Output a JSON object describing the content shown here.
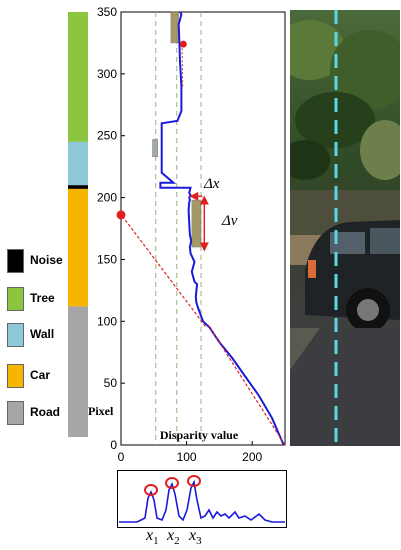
{
  "legend": [
    {
      "label": "Noise",
      "color": "#000000"
    },
    {
      "label": "Tree",
      "color": "#8cc63f"
    },
    {
      "label": "Wall",
      "color": "#8ec9d9"
    },
    {
      "label": "Car",
      "color": "#f7b500"
    },
    {
      "label": "Road",
      "color": "#a6a6a6"
    }
  ],
  "segment_bar": [
    {
      "class": "Tree",
      "from": 245,
      "to": 350,
      "color": "#8cc63f"
    },
    {
      "class": "Wall",
      "from": 210,
      "to": 245,
      "color": "#8ec9d9"
    },
    {
      "class": "Noise",
      "from": 207,
      "to": 210,
      "color": "#000000"
    },
    {
      "class": "Car",
      "from": 112,
      "to": 207,
      "color": "#f7b500"
    },
    {
      "class": "Road",
      "from": 0,
      "to": 112,
      "color": "#a6a6a6"
    }
  ],
  "annotations": {
    "pixel": "Pixel",
    "xlabel": "Disparity value",
    "delta_x": "Δx",
    "delta_v": "Δv",
    "peaks": [
      "x",
      "x",
      "x"
    ],
    "peak_subs": [
      "1",
      "2",
      "3"
    ]
  },
  "colors": {
    "curve": "#1a1adc",
    "fit": "#e02020",
    "peak_circle": "#e02020",
    "guide": "#9ab07a",
    "dash_photo": "#5ad7e6"
  },
  "chart_data": {
    "type": "line",
    "xlim": [
      0,
      250
    ],
    "ylim": [
      0,
      350
    ],
    "xticks": [
      0,
      100,
      200
    ],
    "yticks": [
      0,
      50,
      100,
      150,
      200,
      250,
      300,
      350
    ],
    "series": [
      {
        "x": [
          248,
          230,
          210,
          190,
          170,
          150,
          135,
          125,
          118,
          115,
          114,
          116,
          112,
          108,
          112,
          106,
          105,
          107,
          105,
          104,
          103,
          104,
          105,
          104,
          106,
          104,
          105,
          106,
          60,
          60,
          80,
          62,
          62,
          86,
          92,
          92,
          90,
          89,
          88,
          92,
          90
        ],
        "y": [
          0,
          22,
          40,
          55,
          70,
          83,
          95,
          100,
          110,
          115,
          120,
          130,
          132,
          140,
          148,
          155,
          160,
          165,
          170,
          180,
          190,
          196,
          198,
          200,
          202,
          204,
          206,
          208,
          208,
          212,
          212,
          220,
          260,
          262,
          270,
          290,
          310,
          325,
          340,
          348,
          350
        ]
      },
      {
        "x": [
          250,
          133
        ],
        "y": [
          0,
          97
        ]
      },
      {
        "x": [
          2,
          130
        ],
        "y": [
          185,
          95
        ]
      },
      {
        "x": [
          94,
          93
        ],
        "y": [
          290,
          325
        ]
      }
    ],
    "guides_x": [
      53,
      85,
      122
    ],
    "boxes": [
      {
        "x0": 76,
        "x1": 88,
        "y0": 325,
        "y1": 350
      },
      {
        "x0": 48,
        "x1": 56,
        "y0": 233,
        "y1": 247
      },
      {
        "x0": 108,
        "x1": 122,
        "y0": 160,
        "y1": 198
      }
    ],
    "points": [
      {
        "x": 0,
        "y": 186
      },
      {
        "x": 95,
        "y": 324
      }
    ]
  }
}
